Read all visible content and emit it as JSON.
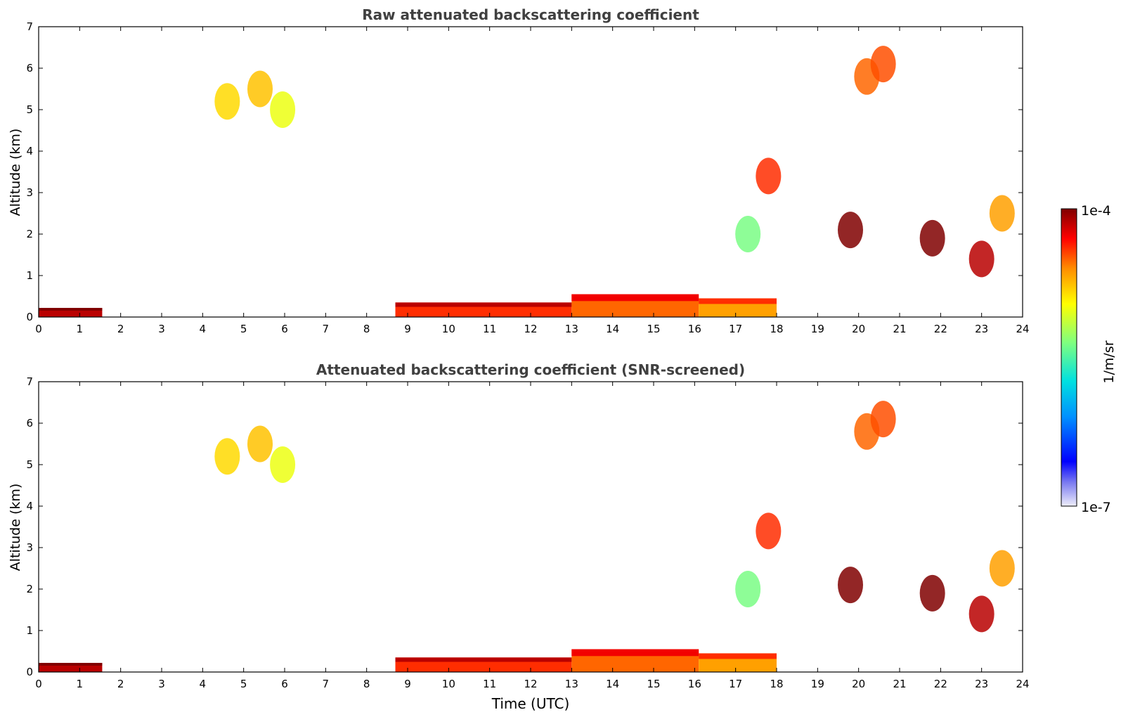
{
  "chart_data": [
    {
      "type": "heatmap",
      "title": "Raw attenuated backscattering coefficient",
      "ylabel": "Altitude (km)",
      "xlabel": "",
      "xlim": [
        0,
        24
      ],
      "ylim": [
        0,
        7
      ],
      "xticks": [
        "0",
        "1",
        "2",
        "3",
        "4",
        "5",
        "6",
        "7",
        "8",
        "9",
        "10",
        "11",
        "12",
        "13",
        "14",
        "15",
        "16",
        "17",
        "18",
        "19",
        "20",
        "21",
        "22",
        "23",
        "24"
      ],
      "yticks": [
        "0",
        "1",
        "2",
        "3",
        "4",
        "5",
        "6",
        "7"
      ],
      "features": [
        {
          "kind": "boundary-layer",
          "x_start": 0,
          "x_end": 1.55,
          "top_km": 0.22,
          "level": 0.95
        },
        {
          "kind": "boundary-layer",
          "x_start": 8.7,
          "x_end": 13.0,
          "top_km": 0.35,
          "level": 0.85
        },
        {
          "kind": "boundary-layer",
          "x_start": 13.0,
          "x_end": 16.1,
          "top_km": 0.55,
          "level": 0.8
        },
        {
          "kind": "boundary-layer",
          "x_start": 16.1,
          "x_end": 18.0,
          "top_km": 0.45,
          "level": 0.75
        },
        {
          "kind": "cloud",
          "x": 4.6,
          "y": 5.2,
          "level": 0.7
        },
        {
          "kind": "cloud",
          "x": 5.4,
          "y": 5.5,
          "level": 0.72
        },
        {
          "kind": "cloud",
          "x": 5.95,
          "y": 5.0,
          "level": 0.65
        },
        {
          "kind": "cloud",
          "x": 17.3,
          "y": 2.0,
          "level": 0.55
        },
        {
          "kind": "cloud",
          "x": 17.8,
          "y": 3.4,
          "level": 0.85
        },
        {
          "kind": "cloud",
          "x": 20.2,
          "y": 5.8,
          "level": 0.8
        },
        {
          "kind": "cloud",
          "x": 20.6,
          "y": 6.1,
          "level": 0.82
        },
        {
          "kind": "cloud",
          "x": 19.8,
          "y": 2.1,
          "level": 1.0
        },
        {
          "kind": "cloud",
          "x": 21.8,
          "y": 1.9,
          "level": 1.0
        },
        {
          "kind": "cloud",
          "x": 23.0,
          "y": 1.4,
          "level": 0.95
        },
        {
          "kind": "cloud",
          "x": 23.5,
          "y": 2.5,
          "level": 0.75
        }
      ]
    },
    {
      "type": "heatmap",
      "title": "Attenuated backscattering coefficient (SNR-screened)",
      "ylabel": "Altitude (km)",
      "xlabel": "Time (UTC)",
      "xlim": [
        0,
        24
      ],
      "ylim": [
        0,
        7
      ],
      "xticks": [
        "0",
        "1",
        "2",
        "3",
        "4",
        "5",
        "6",
        "7",
        "8",
        "9",
        "10",
        "11",
        "12",
        "13",
        "14",
        "15",
        "16",
        "17",
        "18",
        "19",
        "20",
        "21",
        "22",
        "23",
        "24"
      ],
      "yticks": [
        "0",
        "1",
        "2",
        "3",
        "4",
        "5",
        "6",
        "7"
      ],
      "features": [
        {
          "kind": "boundary-layer",
          "x_start": 0,
          "x_end": 1.55,
          "top_km": 0.22,
          "level": 0.95
        },
        {
          "kind": "boundary-layer",
          "x_start": 8.7,
          "x_end": 13.0,
          "top_km": 0.35,
          "level": 0.85
        },
        {
          "kind": "boundary-layer",
          "x_start": 13.0,
          "x_end": 16.1,
          "top_km": 0.55,
          "level": 0.8
        },
        {
          "kind": "boundary-layer",
          "x_start": 16.1,
          "x_end": 18.0,
          "top_km": 0.45,
          "level": 0.75
        },
        {
          "kind": "cloud",
          "x": 4.6,
          "y": 5.2,
          "level": 0.7
        },
        {
          "kind": "cloud",
          "x": 5.4,
          "y": 5.5,
          "level": 0.72
        },
        {
          "kind": "cloud",
          "x": 5.95,
          "y": 5.0,
          "level": 0.65
        },
        {
          "kind": "cloud",
          "x": 17.3,
          "y": 2.0,
          "level": 0.55
        },
        {
          "kind": "cloud",
          "x": 17.8,
          "y": 3.4,
          "level": 0.85
        },
        {
          "kind": "cloud",
          "x": 20.2,
          "y": 5.8,
          "level": 0.8
        },
        {
          "kind": "cloud",
          "x": 20.6,
          "y": 6.1,
          "level": 0.82
        },
        {
          "kind": "cloud",
          "x": 19.8,
          "y": 2.1,
          "level": 1.0
        },
        {
          "kind": "cloud",
          "x": 21.8,
          "y": 1.9,
          "level": 1.0
        },
        {
          "kind": "cloud",
          "x": 23.0,
          "y": 1.4,
          "level": 0.95
        },
        {
          "kind": "cloud",
          "x": 23.5,
          "y": 2.5,
          "level": 0.75
        }
      ]
    }
  ],
  "colorbar": {
    "label": "1/m/sr",
    "max_label": "1e-4",
    "min_label": "1e-7",
    "colormap": "jet",
    "colors": [
      "#e8e8f8",
      "#5050f0",
      "#0000ff",
      "#00a0ff",
      "#00e0e0",
      "#80ff80",
      "#ffff00",
      "#ff8000",
      "#ff0000",
      "#800000"
    ]
  }
}
